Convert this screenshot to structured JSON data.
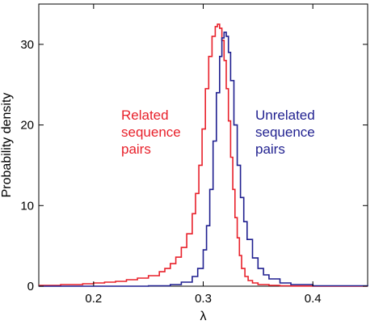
{
  "chart_data": {
    "type": "line",
    "title": "",
    "xlabel": "λ",
    "ylabel": "Probability density",
    "xlim": [
      0.15,
      0.45
    ],
    "ylim": [
      0,
      35
    ],
    "xticks": [
      0.2,
      0.3,
      0.4
    ],
    "xtick_labels": [
      "0.2",
      "0.3",
      "0.4"
    ],
    "yticks": [
      0,
      10,
      20,
      30
    ],
    "ytick_labels": [
      "0",
      "10",
      "20",
      "30"
    ],
    "grid": false,
    "series": [
      {
        "name": "Related sequence pairs",
        "color": "#e8202a",
        "style": "step",
        "x": [
          0.15,
          0.17,
          0.19,
          0.2,
          0.21,
          0.22,
          0.23,
          0.24,
          0.25,
          0.26,
          0.265,
          0.27,
          0.275,
          0.28,
          0.285,
          0.29,
          0.293,
          0.296,
          0.299,
          0.302,
          0.305,
          0.308,
          0.311,
          0.313,
          0.315,
          0.317,
          0.319,
          0.321,
          0.323,
          0.325,
          0.327,
          0.329,
          0.331,
          0.333,
          0.335,
          0.338,
          0.341,
          0.345,
          0.35,
          0.36,
          0.37,
          0.38,
          0.4,
          0.45
        ],
        "y": [
          0.1,
          0.2,
          0.3,
          0.4,
          0.5,
          0.6,
          0.8,
          1.0,
          1.3,
          1.8,
          2.2,
          2.8,
          3.6,
          4.8,
          6.5,
          9.0,
          11.5,
          15.0,
          19.5,
          24.5,
          28.5,
          31.0,
          32.2,
          32.5,
          32.0,
          30.5,
          28.0,
          24.5,
          20.5,
          16.0,
          12.0,
          8.5,
          6.0,
          3.8,
          2.2,
          1.2,
          0.7,
          0.4,
          0.2,
          0.1,
          0.05,
          0.02,
          0.0,
          0.0
        ]
      },
      {
        "name": "Unrelated sequence pairs",
        "color": "#1f1f8f",
        "style": "step",
        "x": [
          0.15,
          0.2,
          0.25,
          0.27,
          0.28,
          0.29,
          0.295,
          0.3,
          0.303,
          0.306,
          0.309,
          0.312,
          0.315,
          0.317,
          0.319,
          0.321,
          0.323,
          0.325,
          0.328,
          0.331,
          0.334,
          0.337,
          0.34,
          0.345,
          0.35,
          0.355,
          0.36,
          0.37,
          0.38,
          0.4,
          0.45
        ],
        "y": [
          0.0,
          0.0,
          0.05,
          0.2,
          0.5,
          1.2,
          2.2,
          4.5,
          7.5,
          12.0,
          18.0,
          24.0,
          28.5,
          30.8,
          31.5,
          31.0,
          29.0,
          25.5,
          20.0,
          15.0,
          11.0,
          8.0,
          5.8,
          3.5,
          2.2,
          1.4,
          0.9,
          0.4,
          0.2,
          0.05,
          0.0
        ]
      }
    ],
    "annotations": [
      {
        "lines": [
          "Related",
          "sequence",
          "pairs"
        ],
        "color": "#e8202a"
      },
      {
        "lines": [
          "Unrelated",
          "sequence",
          "pairs"
        ],
        "color": "#1f1f8f"
      }
    ]
  }
}
